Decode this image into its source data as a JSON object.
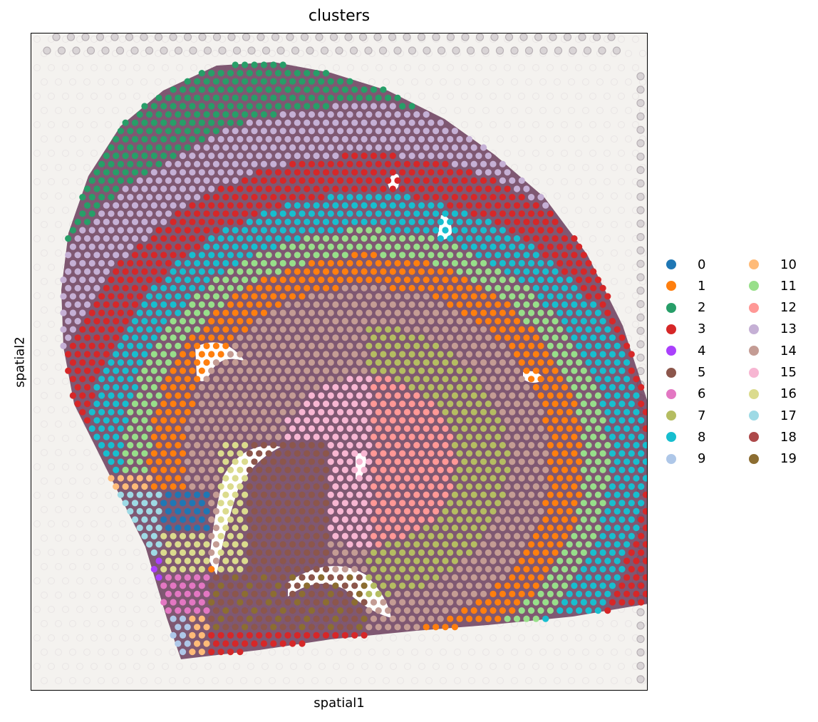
{
  "chart_data": {
    "type": "scatter",
    "title": "clusters",
    "xlabel": "spatial1",
    "ylabel": "spatial2",
    "x_ticks": [],
    "y_ticks": [],
    "background": "H&E tissue image (hippocampus section) with Visium spot grid",
    "legend": {
      "placement": "right",
      "columns": 2,
      "entries": [
        {
          "label": "0",
          "color": "#1f77b4"
        },
        {
          "label": "1",
          "color": "#ff7f0e"
        },
        {
          "label": "2",
          "color": "#279e68"
        },
        {
          "label": "3",
          "color": "#d62728"
        },
        {
          "label": "4",
          "color": "#aa40fc"
        },
        {
          "label": "5",
          "color": "#8c564b"
        },
        {
          "label": "6",
          "color": "#e377c2"
        },
        {
          "label": "7",
          "color": "#b5bd61"
        },
        {
          "label": "8",
          "color": "#17becf"
        },
        {
          "label": "9",
          "color": "#aec7e8"
        },
        {
          "label": "10",
          "color": "#ffbb78"
        },
        {
          "label": "11",
          "color": "#98df8a"
        },
        {
          "label": "12",
          "color": "#ff9896"
        },
        {
          "label": "13",
          "color": "#c5b0d5"
        },
        {
          "label": "14",
          "color": "#c49c94"
        },
        {
          "label": "15",
          "color": "#f7b6d2"
        },
        {
          "label": "16",
          "color": "#dbdb8d"
        },
        {
          "label": "17",
          "color": "#9edae5"
        },
        {
          "label": "18",
          "color": "#ad494a"
        },
        {
          "label": "19",
          "color": "#8c6d31"
        }
      ]
    }
  }
}
